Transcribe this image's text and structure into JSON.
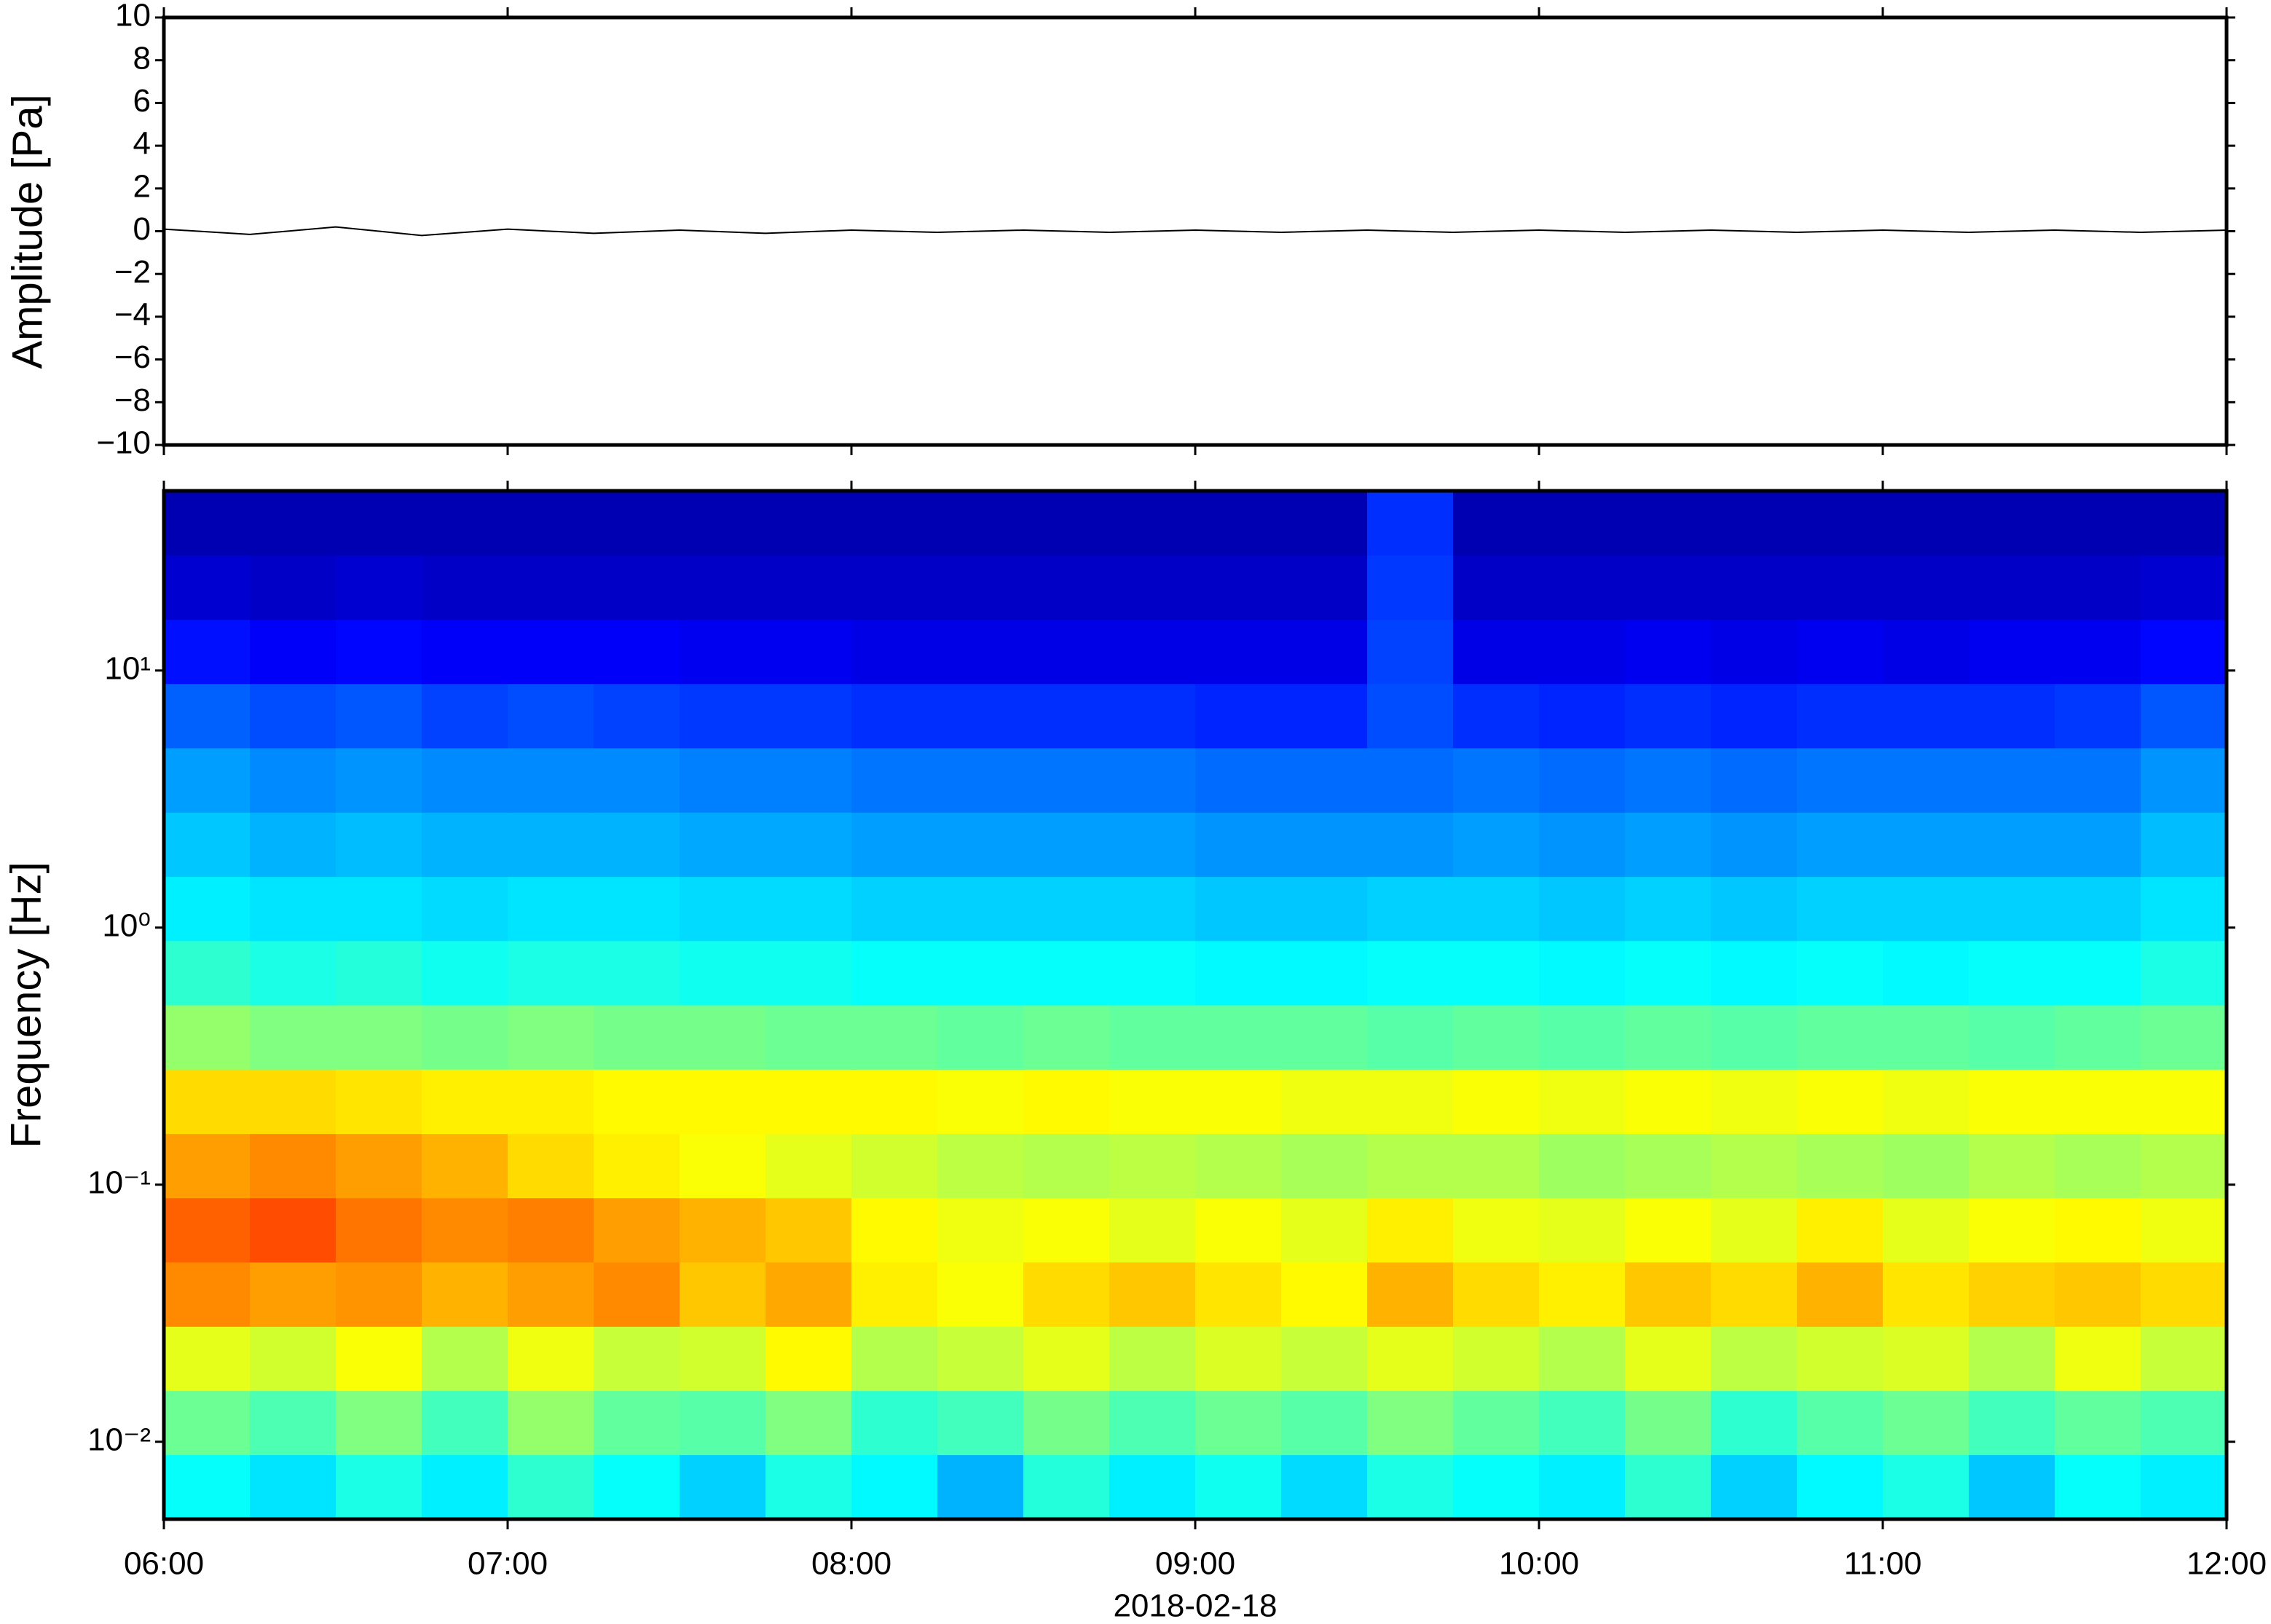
{
  "chart_data": [
    {
      "type": "line",
      "ylabel": "Amplitude [Pa]",
      "color": "#000000",
      "x": [
        6,
        6.25,
        6.5,
        6.75,
        7,
        7.25,
        7.5,
        7.75,
        8,
        8.25,
        8.5,
        8.75,
        9,
        9.25,
        9.5,
        9.75,
        10,
        10.25,
        10.5,
        10.75,
        11,
        11.25,
        11.5,
        11.75,
        12
      ],
      "values": [
        0.1,
        -0.15,
        0.2,
        -0.2,
        0.1,
        -0.1,
        0.05,
        -0.1,
        0.05,
        -0.05,
        0.05,
        -0.05,
        0.05,
        -0.05,
        0.05,
        -0.05,
        0.05,
        -0.05,
        0.05,
        -0.05,
        0.05,
        -0.05,
        0.05,
        -0.05,
        0.05
      ],
      "xlim": [
        6,
        12
      ],
      "ylim": [
        -10,
        10
      ],
      "yticks": [
        {
          "value": -10,
          "label": "−10"
        },
        {
          "value": -8,
          "label": "−8"
        },
        {
          "value": -6,
          "label": "−6"
        },
        {
          "value": -4,
          "label": "−4"
        },
        {
          "value": -2,
          "label": "−2"
        },
        0,
        2,
        4,
        6,
        8,
        10
      ]
    },
    {
      "type": "heatmap",
      "ylabel": "Frequency [Hz]",
      "xlabel": "2018-02-18",
      "colormap": "jet",
      "yscale": "log",
      "xlim": [
        6,
        12
      ],
      "ylim": [
        0.005,
        50
      ],
      "xticks": [
        {
          "value": 6,
          "label": "06:00"
        },
        {
          "value": 7,
          "label": "07:00"
        },
        {
          "value": 8,
          "label": "08:00"
        },
        {
          "value": 9,
          "label": "09:00"
        },
        {
          "value": 10,
          "label": "10:00"
        },
        {
          "value": 11,
          "label": "11:00"
        },
        {
          "value": 12,
          "label": "12:00"
        }
      ],
      "yticks": [
        {
          "value": 0.01,
          "label": "10⁻²"
        },
        {
          "value": 0.1,
          "label": "10⁻¹"
        },
        {
          "value": 1,
          "label": "10⁰"
        },
        {
          "value": 10,
          "label": "10¹"
        }
      ],
      "x_bins": [
        6,
        6.25,
        6.5,
        6.75,
        7,
        7.25,
        7.5,
        7.75,
        8,
        8.25,
        8.5,
        8.75,
        9,
        9.25,
        9.5,
        9.75,
        10,
        10.25,
        10.5,
        10.75,
        11,
        11.25,
        11.5,
        11.75,
        12
      ],
      "y_bins": [
        0.005,
        0.0089,
        0.0158,
        0.0281,
        0.05,
        0.0889,
        0.158,
        0.281,
        0.5,
        0.889,
        1.58,
        2.81,
        5,
        8.89,
        15.8,
        28.1,
        50
      ],
      "z": [
        [
          0.38,
          0.35,
          0.4,
          0.36,
          0.42,
          0.38,
          0.33,
          0.4,
          0.37,
          0.3,
          0.41,
          0.36,
          0.39,
          0.34,
          0.4,
          0.38,
          0.36,
          0.42,
          0.33,
          0.37,
          0.4,
          0.32,
          0.38,
          0.36
        ],
        [
          0.48,
          0.45,
          0.5,
          0.44,
          0.52,
          0.47,
          0.46,
          0.5,
          0.42,
          0.44,
          0.49,
          0.45,
          0.48,
          0.46,
          0.5,
          0.47,
          0.44,
          0.49,
          0.42,
          0.46,
          0.48,
          0.44,
          0.47,
          0.45
        ],
        [
          0.6,
          0.58,
          0.62,
          0.55,
          0.61,
          0.57,
          0.58,
          0.63,
          0.55,
          0.57,
          0.6,
          0.56,
          0.59,
          0.57,
          0.6,
          0.58,
          0.55,
          0.6,
          0.56,
          0.58,
          0.59,
          0.55,
          0.61,
          0.57
        ],
        [
          0.74,
          0.72,
          0.73,
          0.7,
          0.72,
          0.74,
          0.68,
          0.71,
          0.64,
          0.62,
          0.66,
          0.68,
          0.65,
          0.63,
          0.7,
          0.66,
          0.64,
          0.68,
          0.66,
          0.7,
          0.65,
          0.67,
          0.68,
          0.66
        ],
        [
          0.78,
          0.8,
          0.76,
          0.74,
          0.75,
          0.72,
          0.7,
          0.68,
          0.63,
          0.61,
          0.62,
          0.6,
          0.62,
          0.6,
          0.64,
          0.61,
          0.6,
          0.62,
          0.6,
          0.64,
          0.6,
          0.62,
          0.63,
          0.61
        ],
        [
          0.72,
          0.74,
          0.72,
          0.7,
          0.66,
          0.64,
          0.62,
          0.6,
          0.58,
          0.56,
          0.55,
          0.56,
          0.55,
          0.54,
          0.55,
          0.55,
          0.53,
          0.54,
          0.55,
          0.54,
          0.53,
          0.55,
          0.54,
          0.55
        ],
        [
          0.66,
          0.66,
          0.65,
          0.64,
          0.64,
          0.63,
          0.63,
          0.63,
          0.63,
          0.62,
          0.63,
          0.62,
          0.62,
          0.61,
          0.61,
          0.62,
          0.61,
          0.62,
          0.61,
          0.62,
          0.61,
          0.62,
          0.62,
          0.62
        ],
        [
          0.52,
          0.5,
          0.5,
          0.49,
          0.5,
          0.49,
          0.49,
          0.48,
          0.48,
          0.47,
          0.48,
          0.47,
          0.47,
          0.47,
          0.46,
          0.47,
          0.46,
          0.47,
          0.46,
          0.47,
          0.47,
          0.46,
          0.47,
          0.48
        ],
        [
          0.42,
          0.4,
          0.41,
          0.39,
          0.4,
          0.4,
          0.39,
          0.39,
          0.38,
          0.38,
          0.38,
          0.38,
          0.37,
          0.37,
          0.38,
          0.38,
          0.37,
          0.38,
          0.37,
          0.38,
          0.37,
          0.38,
          0.38,
          0.4
        ],
        [
          0.36,
          0.35,
          0.35,
          0.34,
          0.35,
          0.35,
          0.34,
          0.34,
          0.33,
          0.33,
          0.33,
          0.33,
          0.32,
          0.32,
          0.33,
          0.33,
          0.32,
          0.33,
          0.32,
          0.33,
          0.33,
          0.33,
          0.33,
          0.35
        ],
        [
          0.32,
          0.3,
          0.31,
          0.3,
          0.3,
          0.3,
          0.29,
          0.29,
          0.28,
          0.28,
          0.28,
          0.28,
          0.27,
          0.27,
          0.27,
          0.28,
          0.27,
          0.28,
          0.27,
          0.28,
          0.28,
          0.28,
          0.28,
          0.31
        ],
        [
          0.28,
          0.26,
          0.27,
          0.26,
          0.26,
          0.26,
          0.25,
          0.25,
          0.24,
          0.24,
          0.24,
          0.24,
          0.23,
          0.23,
          0.23,
          0.24,
          0.23,
          0.24,
          0.23,
          0.24,
          0.24,
          0.24,
          0.24,
          0.27
        ],
        [
          0.22,
          0.2,
          0.21,
          0.19,
          0.2,
          0.19,
          0.18,
          0.18,
          0.17,
          0.17,
          0.17,
          0.17,
          0.16,
          0.16,
          0.2,
          0.17,
          0.16,
          0.17,
          0.16,
          0.17,
          0.17,
          0.17,
          0.18,
          0.21
        ],
        [
          0.14,
          0.12,
          0.13,
          0.12,
          0.12,
          0.12,
          0.11,
          0.11,
          0.1,
          0.1,
          0.1,
          0.1,
          0.1,
          0.1,
          0.19,
          0.1,
          0.1,
          0.11,
          0.1,
          0.11,
          0.1,
          0.11,
          0.11,
          0.13
        ],
        [
          0.08,
          0.07,
          0.08,
          0.07,
          0.07,
          0.07,
          0.07,
          0.07,
          0.07,
          0.07,
          0.07,
          0.07,
          0.07,
          0.07,
          0.18,
          0.07,
          0.07,
          0.07,
          0.07,
          0.07,
          0.07,
          0.07,
          0.07,
          0.08
        ],
        [
          0.05,
          0.05,
          0.05,
          0.05,
          0.05,
          0.05,
          0.05,
          0.05,
          0.05,
          0.05,
          0.05,
          0.05,
          0.05,
          0.05,
          0.17,
          0.05,
          0.05,
          0.05,
          0.05,
          0.05,
          0.05,
          0.05,
          0.05,
          0.05
        ]
      ]
    }
  ]
}
